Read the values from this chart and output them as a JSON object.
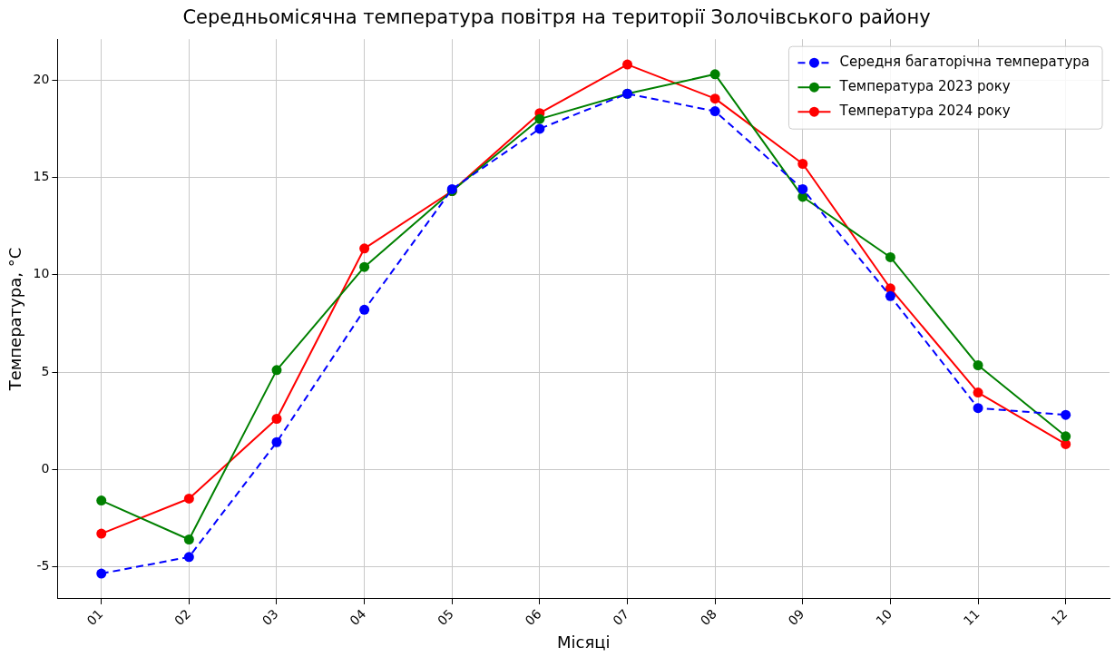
{
  "chart_data": {
    "type": "line",
    "title": "Середньомісячна температура повітря на території Золочівського району",
    "xlabel": "Місяці",
    "ylabel": "Температура, °C",
    "categories": [
      "01",
      "02",
      "03",
      "04",
      "05",
      "06",
      "07",
      "08",
      "09",
      "10",
      "11",
      "12"
    ],
    "series": [
      {
        "name": "Середня багаторічна температура",
        "color": "#0000ff",
        "line_style": "dashed",
        "values": [
          -5.35,
          -4.5,
          1.4,
          8.2,
          14.4,
          17.5,
          19.3,
          18.4,
          14.4,
          8.9,
          3.15,
          2.8
        ]
      },
      {
        "name": "Температура 2023 року",
        "color": "#008000",
        "line_style": "solid",
        "values": [
          -1.6,
          -3.6,
          5.1,
          10.4,
          14.3,
          18.0,
          19.3,
          20.3,
          14.0,
          10.9,
          5.35,
          1.7
        ]
      },
      {
        "name": "Температура 2024 року",
        "color": "#ff0000",
        "line_style": "solid",
        "values": [
          -3.3,
          -1.5,
          2.6,
          11.35,
          14.3,
          18.3,
          20.8,
          19.05,
          15.7,
          9.3,
          3.95,
          1.3
        ]
      }
    ],
    "ylim": [
      -6.65,
      22.1
    ],
    "yticks": [
      -5,
      0,
      5,
      10,
      15,
      20
    ],
    "grid": true,
    "legend": "top right",
    "marker": "circle"
  }
}
